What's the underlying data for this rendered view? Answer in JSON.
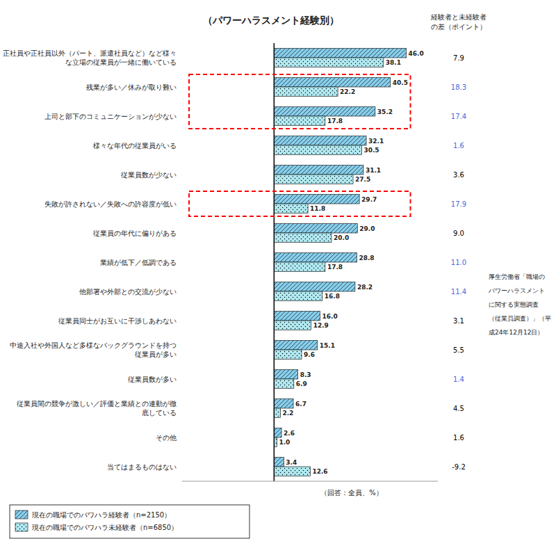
{
  "chart_data": {
    "type": "bar",
    "orientation": "horizontal",
    "title": "（パワーハラスメント経験別）",
    "xlabel": "（回答：全員、%）",
    "source": "厚生労働省「職場の\nパワーハラスメント\nに関する実態調査\n（従業員調査）」（平\n成24年12月12日）",
    "categories": [
      "正社員や正社員以外（パート、派遣社員など）など様々\nな立場の従業員が一緒に働いている",
      "残業が多い／休みが取り難い",
      "上司と部下のコミュニケーションが少ない",
      "様々な年代の従業員がいる",
      "従業員数が少ない",
      "失敗が許されない／失敗への許容度が低い",
      "従業員の年代に偏りがある",
      "業績が低下／低調である",
      "他部署や外部との交流が少ない",
      "従業員同士がお互いに干渉しあわない",
      "中途入社や外国人など多様なバックグラウンドを持つ\n従業員が多い",
      "従業員数が多い",
      "従業員間の競争が激しい／評価と業績との連動が徹\n底している",
      "その他",
      "当てはまるものはない"
    ],
    "series": [
      {
        "name": "現在の職場でのパワハラ経験者（n=2150）",
        "color": "#87CEEB",
        "values": [
          46.0,
          40.5,
          35.2,
          32.1,
          31.1,
          29.7,
          29.0,
          28.8,
          28.2,
          16.0,
          15.1,
          8.3,
          6.7,
          2.6,
          3.4
        ],
        "value_labels": [
          "46.0",
          "40.5",
          "35.2",
          "32.1",
          "31.1",
          "29.7",
          "29.0",
          "28.8",
          "28.2",
          "16.0",
          "15.1",
          "8.3",
          "6.7",
          "2.6",
          "3.4"
        ]
      },
      {
        "name": "現在の職場でのパワハラ未経験者（n=6850）",
        "color": "#B0E8F0",
        "values": [
          38.1,
          22.2,
          17.8,
          30.5,
          27.5,
          11.8,
          20.0,
          17.8,
          16.8,
          12.9,
          9.6,
          6.9,
          2.2,
          1.0,
          12.6
        ],
        "value_labels": [
          "38.1",
          "22.2",
          "17.8",
          "30.5",
          "27.5",
          "11.8",
          "20.0",
          "17.8",
          "16.8",
          "12.9",
          "9.6",
          "6.9",
          "2.2",
          "1.0",
          "12.6"
        ]
      }
    ],
    "differences": {
      "title": "経験者と未経験者\nの差（ポイント）",
      "values": [
        7.9,
        18.3,
        17.4,
        1.6,
        3.6,
        17.9,
        9.0,
        11.0,
        11.4,
        3.1,
        5.5,
        1.4,
        4.5,
        1.6,
        -9.2
      ],
      "value_labels": [
        "7.9",
        "18.3",
        "17.4",
        "1.6",
        "3.6",
        "17.9",
        "9.0",
        "11.0",
        "11.4",
        "3.1",
        "5.5",
        "1.4",
        "4.5",
        "1.6",
        "-9.2"
      ],
      "colors": [
        "#000000",
        "#4169e1",
        "#4169e1",
        "#4169e1",
        "#000000",
        "#4169e1",
        "#000000",
        "#4169e1",
        "#4169e1",
        "#000000",
        "#000000",
        "#4169e1",
        "#000000",
        "#000000",
        "#000000"
      ]
    },
    "highlights": {
      "groups": [
        [
          1,
          2
        ],
        [
          5
        ]
      ],
      "color": "red"
    },
    "xlim": [
      -32,
      57
    ],
    "xticks": [],
    "grid": false,
    "legend": "lower left",
    "data_labels": true,
    "tick_labels": "y"
  }
}
